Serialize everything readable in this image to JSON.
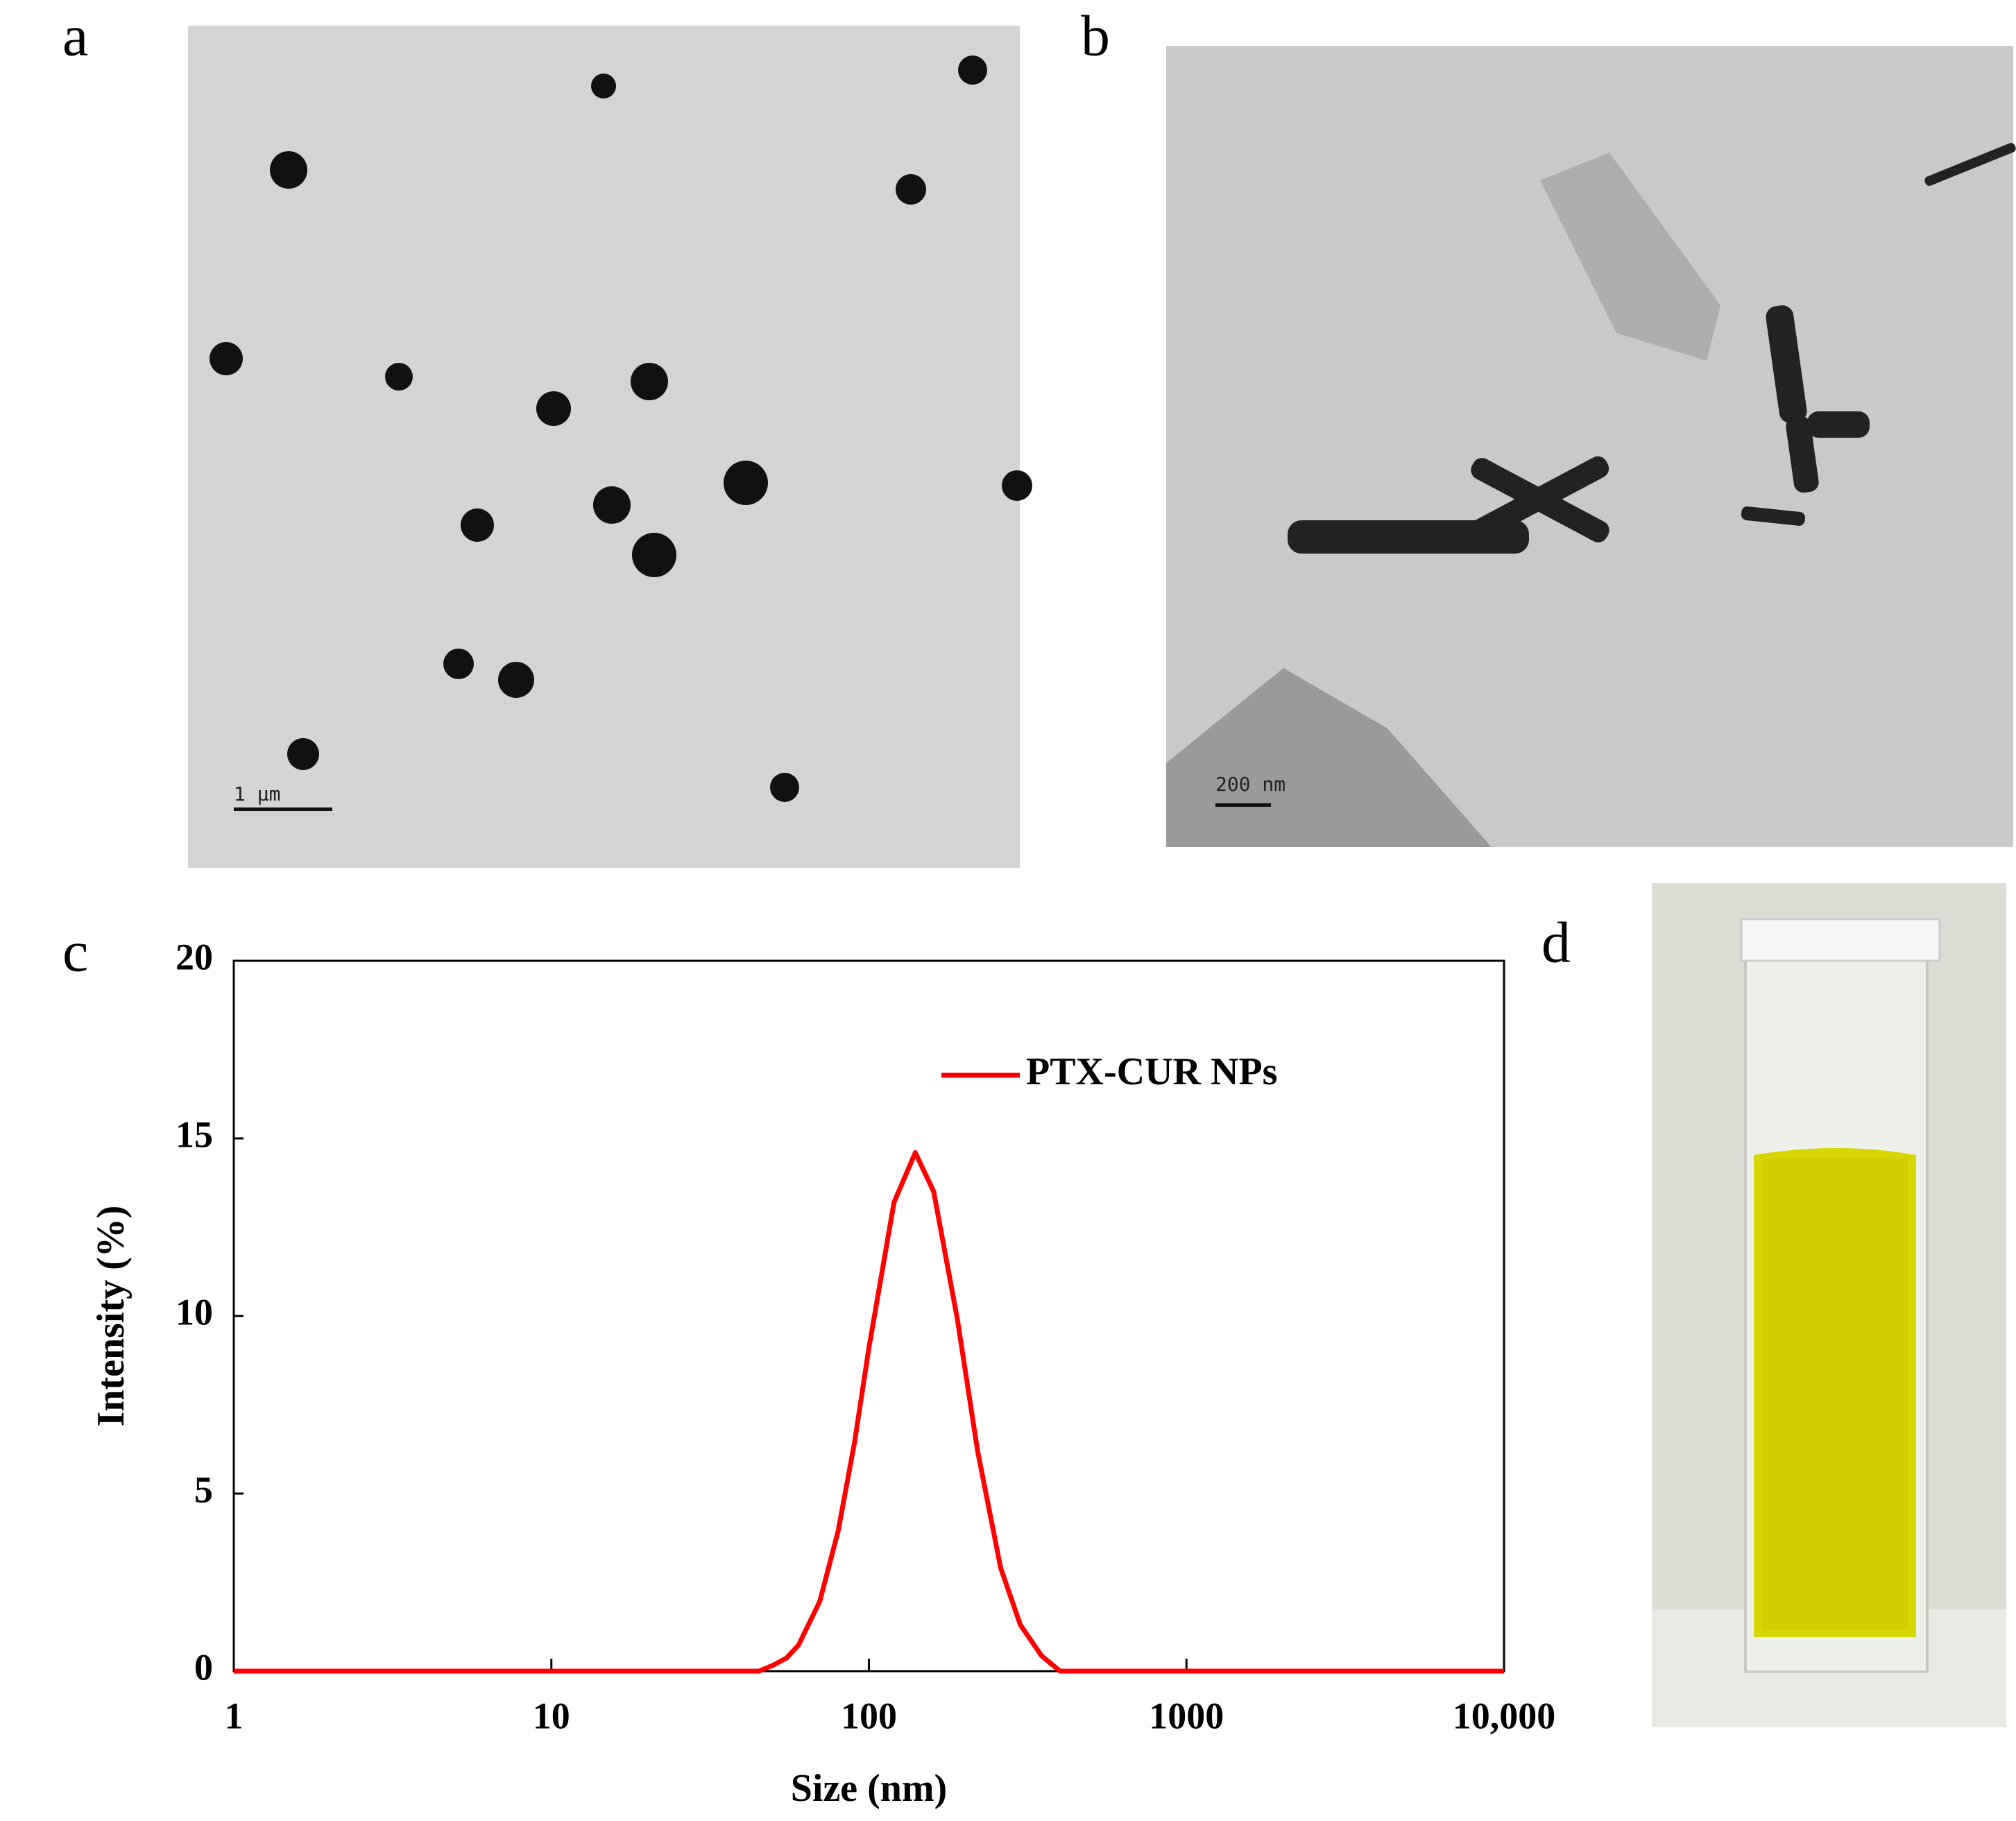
{
  "panels": {
    "a": {
      "label": "a",
      "scale_bar": "1 µm"
    },
    "b": {
      "label": "b",
      "scale_bar": "200 nm"
    },
    "c": {
      "label": "c"
    },
    "d": {
      "label": "d"
    }
  },
  "chart_data": {
    "type": "line",
    "xscale": "log",
    "x_label": "Size (nm)",
    "y_label": "Intensity (%)",
    "x": [
      1,
      45,
      50,
      55,
      60,
      70,
      80,
      90,
      100,
      120,
      140,
      160,
      190,
      220,
      260,
      300,
      350,
      400,
      10000
    ],
    "series": [
      {
        "name": "PTX-CUR NPs",
        "color": "#ff0000",
        "values": [
          0,
          0,
          0.17,
          0.37,
          0.73,
          1.96,
          3.94,
          6.42,
          9.1,
          13.2,
          14.6,
          13.5,
          9.9,
          6.2,
          2.9,
          1.3,
          0.43,
          0,
          0
        ]
      }
    ],
    "xlim": [
      1,
      10000
    ],
    "xticks": [
      1,
      10,
      100,
      1000,
      {
        "value": 10000,
        "label": "10,000"
      }
    ],
    "ylim": [
      0,
      20
    ],
    "yticks": [
      0,
      5,
      10,
      15,
      20
    ],
    "legend": "upper right"
  }
}
